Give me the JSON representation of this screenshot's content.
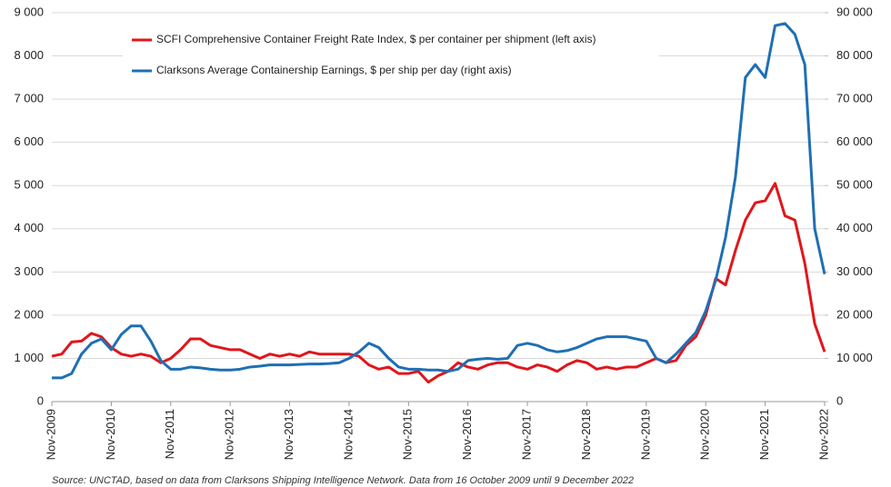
{
  "chart_data": {
    "type": "line",
    "x": [
      "2009-11",
      "2010-01",
      "2010-03",
      "2010-05",
      "2010-07",
      "2010-09",
      "2010-11",
      "2011-01",
      "2011-03",
      "2011-05",
      "2011-07",
      "2011-09",
      "2011-11",
      "2012-01",
      "2012-03",
      "2012-05",
      "2012-07",
      "2012-09",
      "2012-11",
      "2013-01",
      "2013-03",
      "2013-05",
      "2013-07",
      "2013-09",
      "2013-11",
      "2014-01",
      "2014-03",
      "2014-05",
      "2014-07",
      "2014-09",
      "2014-11",
      "2015-01",
      "2015-03",
      "2015-05",
      "2015-07",
      "2015-09",
      "2015-11",
      "2016-01",
      "2016-03",
      "2016-05",
      "2016-07",
      "2016-09",
      "2016-11",
      "2017-01",
      "2017-03",
      "2017-05",
      "2017-07",
      "2017-09",
      "2017-11",
      "2018-01",
      "2018-03",
      "2018-05",
      "2018-07",
      "2018-09",
      "2018-11",
      "2019-01",
      "2019-03",
      "2019-05",
      "2019-07",
      "2019-09",
      "2019-11",
      "2020-01",
      "2020-03",
      "2020-05",
      "2020-07",
      "2020-09",
      "2020-11",
      "2021-01",
      "2021-03",
      "2021-05",
      "2021-07",
      "2021-09",
      "2021-11",
      "2022-01",
      "2022-03",
      "2022-05",
      "2022-07",
      "2022-09",
      "2022-11"
    ],
    "series": [
      {
        "name": "SCFI Comprehensive Container Freight Rate Index, $ per container per shipment (left axis)",
        "color": "#e0161b",
        "axis": "y",
        "values": [
          1050,
          1100,
          1380,
          1400,
          1580,
          1500,
          1250,
          1100,
          1050,
          1100,
          1050,
          900,
          1000,
          1200,
          1450,
          1450,
          1300,
          1250,
          1200,
          1200,
          1100,
          1000,
          1100,
          1050,
          1100,
          1050,
          1150,
          1100,
          1100,
          1100,
          1100,
          1050,
          850,
          750,
          800,
          650,
          650,
          700,
          450,
          600,
          700,
          900,
          800,
          750,
          850,
          900,
          900,
          800,
          750,
          850,
          800,
          700,
          850,
          950,
          900,
          750,
          800,
          750,
          800,
          800,
          900,
          1000,
          900,
          950,
          1300,
          1500,
          2000,
          2850,
          2700,
          3500,
          4200,
          4600,
          4650,
          5050,
          4300,
          4200,
          3200,
          1800,
          1150
        ]
      },
      {
        "name": "Clarksons Average Containership Earnings, $ per ship per day (right axis)",
        "color": "#1f6fb3",
        "axis": "y2",
        "values": [
          5500,
          5500,
          6500,
          11000,
          13500,
          14500,
          12000,
          15500,
          17500,
          17500,
          14000,
          9500,
          7500,
          7500,
          8000,
          7800,
          7500,
          7300,
          7300,
          7500,
          8000,
          8200,
          8500,
          8500,
          8500,
          8600,
          8700,
          8700,
          8800,
          9000,
          10000,
          11500,
          13500,
          12500,
          10000,
          8000,
          7500,
          7500,
          7300,
          7300,
          7000,
          7500,
          9500,
          9800,
          10000,
          9800,
          10000,
          13000,
          13500,
          13000,
          12000,
          11500,
          11800,
          12500,
          13500,
          14500,
          15000,
          15000,
          15000,
          14500,
          14000,
          10000,
          9000,
          11000,
          13500,
          16000,
          21000,
          28000,
          38000,
          52000,
          75000,
          78000,
          75000,
          87000,
          87500,
          85000,
          78000,
          40000,
          29500
        ]
      }
    ],
    "xlim": [
      "2009-11",
      "2022-11"
    ],
    "xticks": [
      {
        "value": "2009-11",
        "label": "Nov-2009"
      },
      {
        "value": "2010-11",
        "label": "Nov-2010"
      },
      {
        "value": "2011-11",
        "label": "Nov-2011"
      },
      {
        "value": "2012-11",
        "label": "Nov-2012"
      },
      {
        "value": "2013-11",
        "label": "Nov-2013"
      },
      {
        "value": "2014-11",
        "label": "Nov-2014"
      },
      {
        "value": "2015-11",
        "label": "Nov-2015"
      },
      {
        "value": "2016-11",
        "label": "Nov-2016"
      },
      {
        "value": "2017-11",
        "label": "Nov-2017"
      },
      {
        "value": "2018-11",
        "label": "Nov-2018"
      },
      {
        "value": "2019-11",
        "label": "Nov-2019"
      },
      {
        "value": "2020-11",
        "label": "Nov-2020"
      },
      {
        "value": "2021-11",
        "label": "Nov-2021"
      },
      {
        "value": "2022-11",
        "label": "Nov-2022"
      }
    ],
    "ylim": [
      0,
      9000
    ],
    "yticks": [
      0,
      {
        "value": 1000,
        "label": "1 000"
      },
      {
        "value": 2000,
        "label": "2 000"
      },
      {
        "value": 3000,
        "label": "3 000"
      },
      {
        "value": 4000,
        "label": "4 000"
      },
      {
        "value": 5000,
        "label": "5 000"
      },
      {
        "value": 6000,
        "label": "6 000"
      },
      {
        "value": 7000,
        "label": "7 000"
      },
      {
        "value": 8000,
        "label": "8 000"
      },
      {
        "value": 9000,
        "label": "9 000"
      }
    ],
    "y2lim": [
      0,
      90000
    ],
    "y2ticks": [
      0,
      {
        "value": 10000,
        "label": "10 000"
      },
      {
        "value": 20000,
        "label": "20 000"
      },
      {
        "value": 30000,
        "label": "30 000"
      },
      {
        "value": 40000,
        "label": "40 000"
      },
      {
        "value": 50000,
        "label": "50 000"
      },
      {
        "value": 60000,
        "label": "60 000"
      },
      {
        "value": 70000,
        "label": "70 000"
      },
      {
        "value": 80000,
        "label": "80 000"
      },
      {
        "value": 90000,
        "label": "90 000"
      }
    ],
    "grid": true,
    "note": "Source: UNCTAD, based on data from Clarksons Shipping Intelligence Network. Data from 16 October 2009 until 9 December 2022"
  }
}
